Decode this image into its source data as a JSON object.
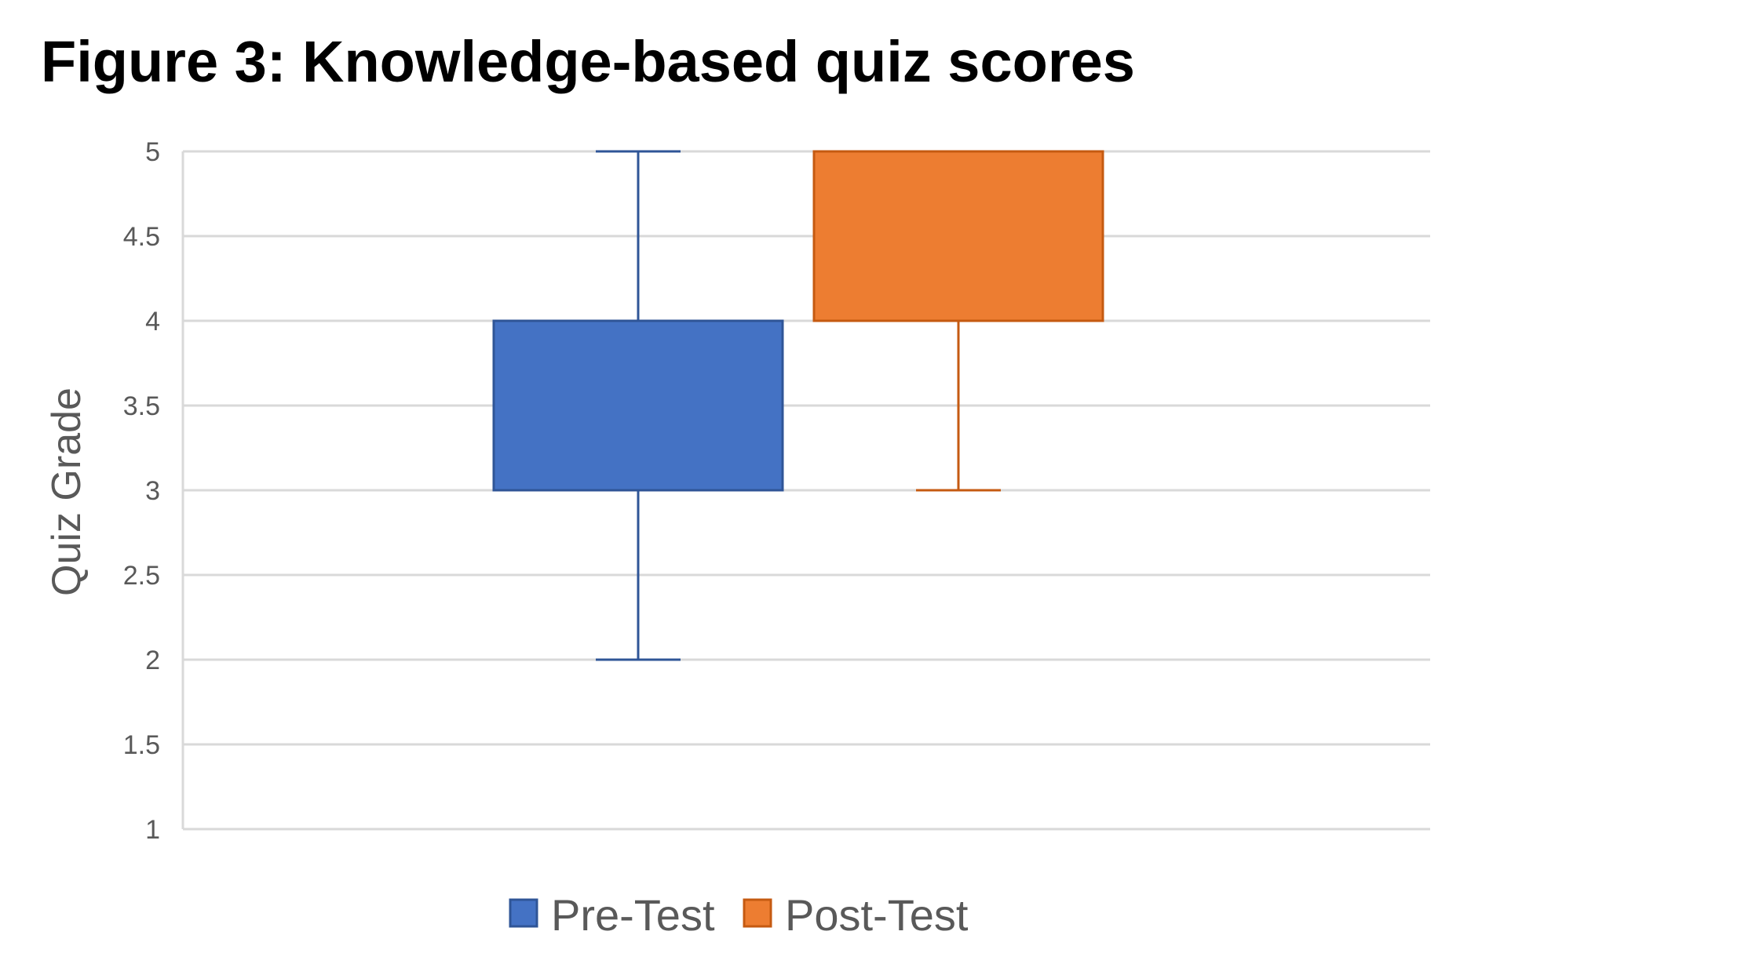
{
  "chart_data": {
    "type": "box",
    "title": "Figure 3: Knowledge-based quiz scores",
    "ylabel": "Quiz Grade",
    "xlabel": "",
    "ylim": [
      1,
      5
    ],
    "yticks": [
      1,
      1.5,
      2,
      2.5,
      3,
      3.5,
      4,
      4.5,
      5
    ],
    "ytick_labels": [
      "1",
      "1.5",
      "2",
      "2.5",
      "3",
      "3.5",
      "4",
      "4.5",
      "5"
    ],
    "grid": true,
    "legend_position": "bottom",
    "series": [
      {
        "name": "Pre-Test",
        "color": "#4472C4",
        "stroke": "#2F5597",
        "min": 2,
        "q1": 3,
        "median": 3,
        "q3": 4,
        "max": 5
      },
      {
        "name": "Post-Test",
        "color": "#ED7D31",
        "stroke": "#C55A11",
        "min": 3,
        "q1": 4,
        "median": 5,
        "q3": 5,
        "max": 5
      }
    ]
  }
}
